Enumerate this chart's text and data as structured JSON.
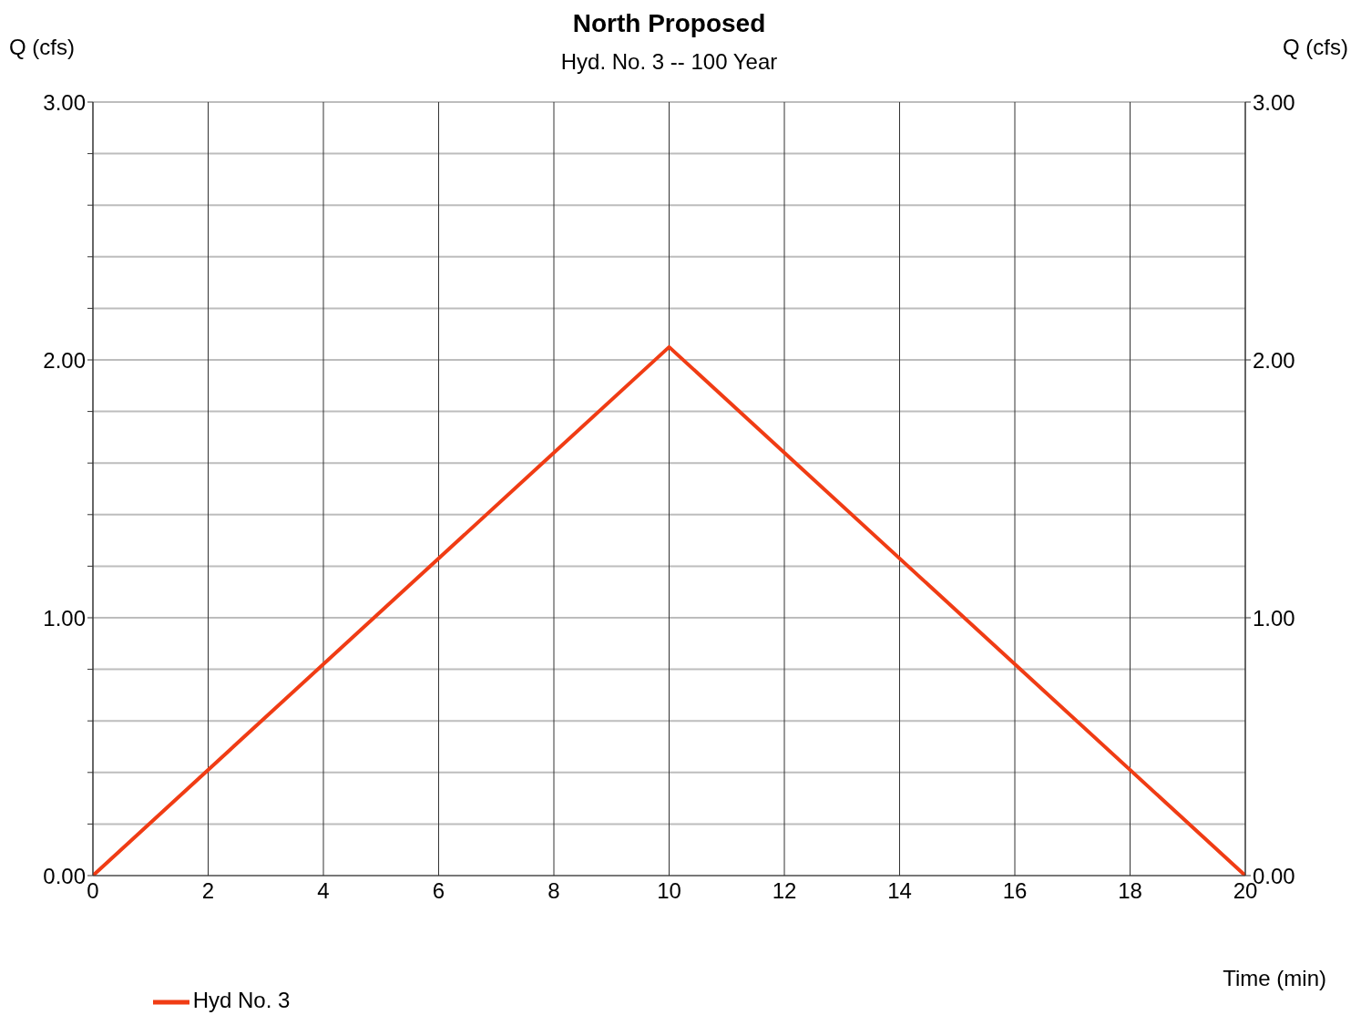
{
  "chart_data": {
    "type": "line",
    "title": "North Proposed",
    "subtitle": "Hyd. No. 3 -- 100 Year",
    "xlabel": "Time (min)",
    "ylabel": "Q (cfs)",
    "y2label": "Q (cfs)",
    "x": [
      0,
      10,
      20
    ],
    "series": [
      {
        "name": "Hyd No. 3",
        "color": "#f03c14",
        "values": [
          0,
          2.05,
          0
        ]
      }
    ],
    "xlim": [
      0,
      20
    ],
    "xticks": [
      0,
      2,
      4,
      6,
      8,
      10,
      12,
      14,
      16,
      18,
      20
    ],
    "ylim": [
      0,
      3
    ],
    "yticks": [
      {
        "value": 0,
        "label": "0.00"
      },
      {
        "value": 0.2,
        "label": null
      },
      {
        "value": 0.4,
        "label": null
      },
      {
        "value": 0.6,
        "label": null
      },
      {
        "value": 0.8,
        "label": null
      },
      {
        "value": 1,
        "label": "1.00"
      },
      {
        "value": 1.2,
        "label": null
      },
      {
        "value": 1.4,
        "label": null
      },
      {
        "value": 1.6,
        "label": null
      },
      {
        "value": 1.8,
        "label": null
      },
      {
        "value": 2,
        "label": "2.00"
      },
      {
        "value": 2.2,
        "label": null
      },
      {
        "value": 2.4,
        "label": null
      },
      {
        "value": 2.6,
        "label": null
      },
      {
        "value": 2.8,
        "label": null
      },
      {
        "value": 3,
        "label": "3.00"
      }
    ],
    "y2lim": [
      0,
      3
    ],
    "y2ticks": [
      {
        "value": 0,
        "label": "0.00"
      },
      {
        "value": 1,
        "label": "1.00"
      },
      {
        "value": 2,
        "label": "2.00"
      },
      {
        "value": 3,
        "label": "3.00"
      }
    ],
    "grid": true,
    "legend": "bottom left",
    "line_style": "solid"
  }
}
